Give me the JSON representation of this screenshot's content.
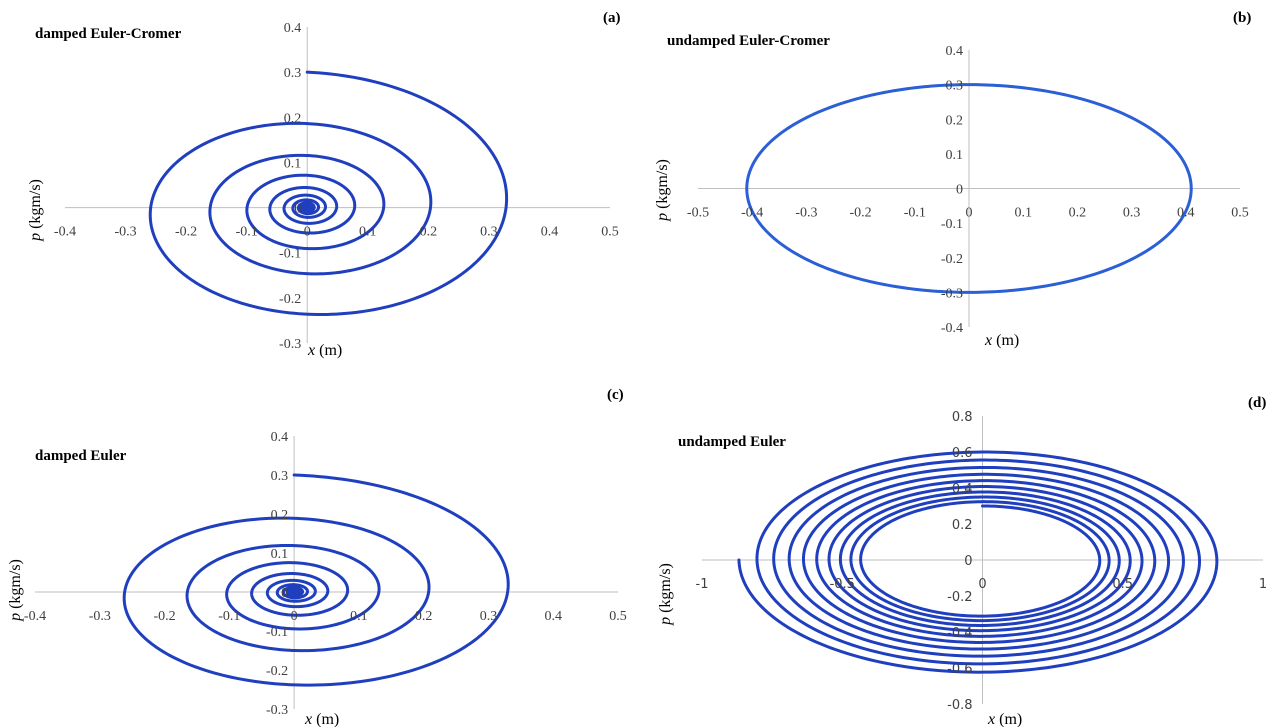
{
  "chart_data": [
    {
      "type": "line",
      "title": "damped Euler-Cromer",
      "panel_label": "(a)",
      "xlabel_var": "x",
      "xlabel_unit": "(m)",
      "ylabel_var": "p",
      "ylabel_unit": "(kgm/s)",
      "xlim": [
        -0.4,
        0.5
      ],
      "ylim": [
        -0.3,
        0.4
      ],
      "xticks": [
        "-0.4",
        "-0.3",
        "-0.2",
        "-0.1",
        "0",
        "0.1",
        "0.2",
        "0.3",
        "0.4",
        "0.5"
      ],
      "yticks": [
        "-0.3",
        "-0.2",
        "-0.1",
        "0",
        "0.1",
        "0.2",
        "0.3",
        "0.4"
      ],
      "series": [
        {
          "kind": "damped",
          "start": [
            0,
            0.3
          ],
          "x_amplitude_turn1": 0.37,
          "p_amplitude_turn1": 0.3,
          "decay_per_turn": 0.62,
          "turns": 11,
          "color": "#1f3fbf"
        }
      ]
    },
    {
      "type": "line",
      "title": "undamped Euler-Cromer",
      "panel_label": "(b)",
      "xlabel_var": "x",
      "xlabel_unit": "(m)",
      "ylabel_var": "p",
      "ylabel_unit": "(kgm/s)",
      "xlim": [
        -0.5,
        0.5
      ],
      "ylim": [
        -0.4,
        0.4
      ],
      "xticks": [
        "-0.5",
        "-0.4",
        "-0.3",
        "-0.2",
        "-0.1",
        "0",
        "0.1",
        "0.2",
        "0.3",
        "0.4",
        "0.5"
      ],
      "yticks": [
        "-0.4",
        "-0.3",
        "-0.2",
        "-0.1",
        "0",
        "0.1",
        "0.2",
        "0.3",
        "0.4"
      ],
      "series": [
        {
          "kind": "ellipse",
          "x_amplitude": 0.41,
          "p_amplitude": 0.3,
          "color": "#2a5fd6"
        }
      ]
    },
    {
      "type": "line",
      "title": "damped Euler",
      "panel_label": "(c)",
      "xlabel_var": "x",
      "xlabel_unit": "(m)",
      "ylabel_var": "p",
      "ylabel_unit": "(kgm/s)",
      "xlim": [
        -0.4,
        0.5
      ],
      "ylim": [
        -0.3,
        0.4
      ],
      "xticks": [
        "-0.4",
        "-0.3",
        "-0.2",
        "-0.1",
        "0",
        "0.1",
        "0.2",
        "0.3",
        "0.4",
        "0.5"
      ],
      "yticks": [
        "-0.3",
        "-0.2",
        "-0.1",
        "0",
        "0.1",
        "0.2",
        "0.3",
        "0.4"
      ],
      "series": [
        {
          "kind": "damped",
          "start": [
            0,
            0.3
          ],
          "x_amplitude_turn1": 0.37,
          "p_amplitude_turn1": 0.3,
          "decay_per_turn": 0.63,
          "turns": 11,
          "color": "#1f3fbf"
        }
      ]
    },
    {
      "type": "line",
      "title": "undamped Euler",
      "panel_label": "(d)",
      "xlabel_var": "x",
      "xlabel_unit": "(m)",
      "ylabel_var": "p",
      "ylabel_unit": "(kgm/s)",
      "xlim": [
        -1,
        1
      ],
      "ylim": [
        -0.8,
        0.8
      ],
      "xticks": [
        "-1",
        "-0.5",
        "0",
        "0.5",
        "1"
      ],
      "yticks": [
        "-0.8",
        "-0.6",
        "-0.4",
        "-0.2",
        "0",
        "0.2",
        "0.4",
        "0.6",
        "0.8"
      ],
      "series": [
        {
          "kind": "growing",
          "start": [
            0,
            0.3
          ],
          "x_amplitude_turn1": 0.41,
          "p_amplitude_turn1": 0.3,
          "growth_per_turn": 1.08,
          "turns": 9.75,
          "color": "#1f3fbf"
        }
      ]
    }
  ]
}
